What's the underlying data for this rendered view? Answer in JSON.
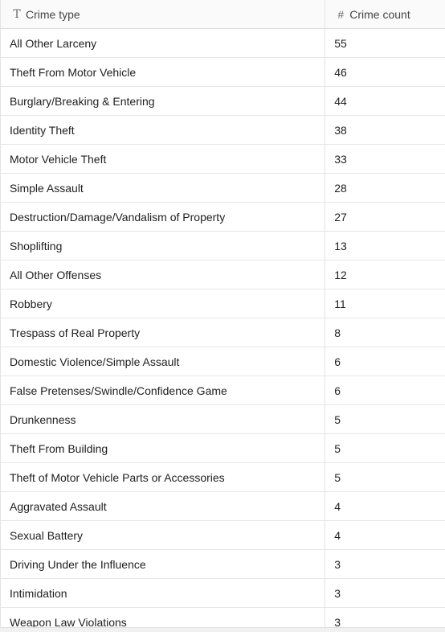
{
  "table": {
    "columns": [
      {
        "icon": "text-type-icon",
        "icon_glyph": "T",
        "label": "Crime type"
      },
      {
        "icon": "number-type-icon",
        "icon_glyph": "#",
        "label": "Crime count"
      }
    ],
    "rows": [
      {
        "crime_type": "All Other Larceny",
        "crime_count": "55"
      },
      {
        "crime_type": "Theft From Motor Vehicle",
        "crime_count": "46"
      },
      {
        "crime_type": "Burglary/Breaking & Entering",
        "crime_count": "44"
      },
      {
        "crime_type": "Identity Theft",
        "crime_count": "38"
      },
      {
        "crime_type": "Motor Vehicle Theft",
        "crime_count": "33"
      },
      {
        "crime_type": "Simple Assault",
        "crime_count": "28"
      },
      {
        "crime_type": "Destruction/Damage/Vandalism of Property",
        "crime_count": "27"
      },
      {
        "crime_type": "Shoplifting",
        "crime_count": "13"
      },
      {
        "crime_type": "All Other Offenses",
        "crime_count": "12"
      },
      {
        "crime_type": "Robbery",
        "crime_count": "11"
      },
      {
        "crime_type": "Trespass of Real Property",
        "crime_count": "8"
      },
      {
        "crime_type": "Domestic Violence/Simple Assault",
        "crime_count": "6"
      },
      {
        "crime_type": "False Pretenses/Swindle/Confidence Game",
        "crime_count": "6"
      },
      {
        "crime_type": "Drunkenness",
        "crime_count": "5"
      },
      {
        "crime_type": "Theft From Building",
        "crime_count": "5"
      },
      {
        "crime_type": "Theft of Motor Vehicle Parts or Accessories",
        "crime_count": "5"
      },
      {
        "crime_type": "Aggravated Assault",
        "crime_count": "4"
      },
      {
        "crime_type": "Sexual Battery",
        "crime_count": "4"
      },
      {
        "crime_type": "Driving Under the Influence",
        "crime_count": "3"
      },
      {
        "crime_type": "Intimidation",
        "crime_count": "3"
      },
      {
        "crime_type": "Weapon Law Violations",
        "crime_count": "3"
      }
    ]
  }
}
